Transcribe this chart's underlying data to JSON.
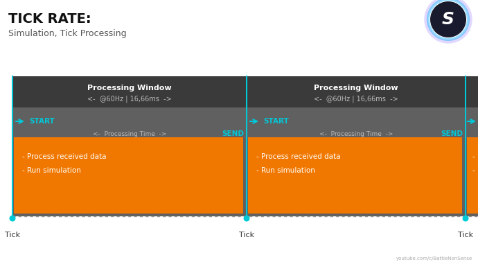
{
  "title": "TICK RATE:",
  "subtitle": "Simulation, Tick Processing",
  "bg_color": "#ffffff",
  "diagram_bg": "#606060",
  "dark_bar_bg": "#3a3a3a",
  "orange_color": "#f07800",
  "cyan_color": "#00c8d7",
  "white": "#ffffff",
  "light_gray": "#bbbbbb",
  "dark_gray_text": "#333333",
  "processing_window_label": "Processing Window",
  "processing_window_sub": "<-  @60Hz | 16,66ms  ->",
  "start_label": "START",
  "send_label": "SEND",
  "tick_label": "Tick",
  "processing_time_label": "<-  Processing Time  ->",
  "orange_lines": [
    "- Process received data",
    "- Run simulation"
  ],
  "youtube_label": "youtube.com/c/BattleNonSense",
  "figsize": [
    6.9,
    3.88
  ],
  "dpi": 100
}
